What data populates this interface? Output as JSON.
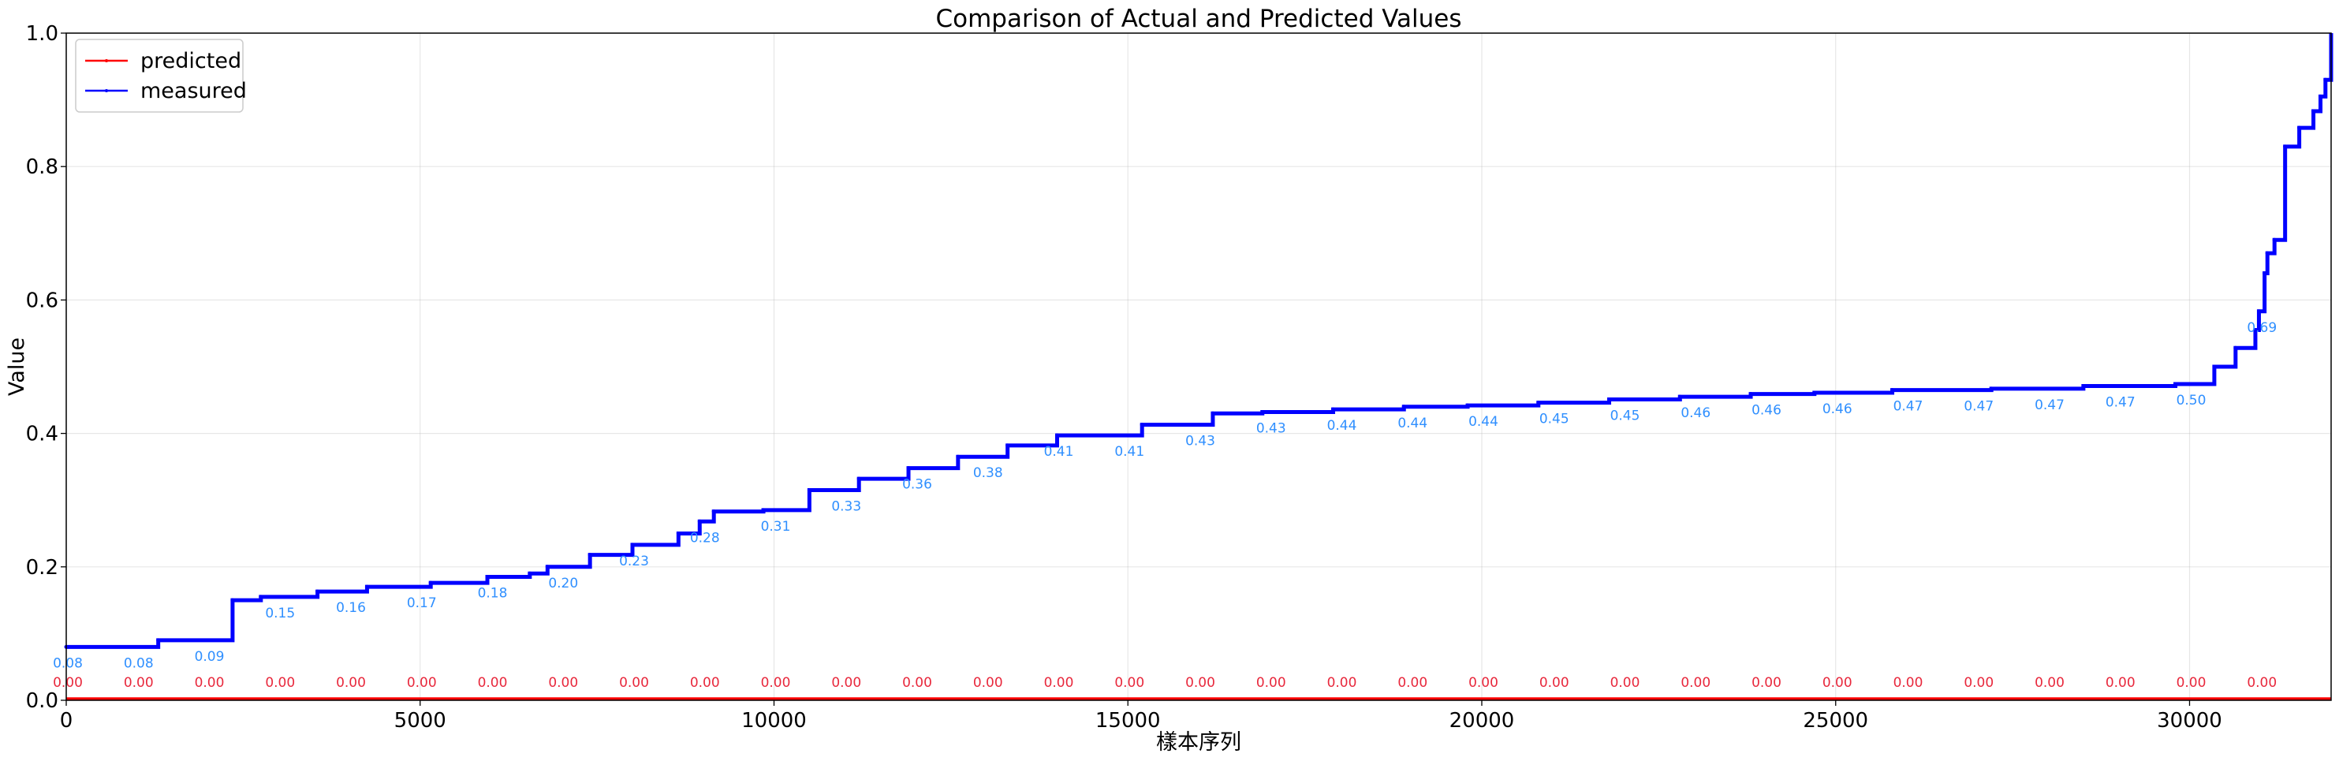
{
  "chart_data": {
    "type": "line",
    "title": "Comparison of Actual and Predicted Values",
    "xlabel": "樣本序列",
    "ylabel": "Value",
    "xlim": [
      0,
      32000
    ],
    "ylim": [
      0.0,
      1.0
    ],
    "grid": true,
    "legend_position": "top-left",
    "x_ticks": [
      0,
      5000,
      10000,
      15000,
      20000,
      25000,
      30000
    ],
    "x_tick_labels": [
      "0",
      "5000",
      "10000",
      "15000",
      "20000",
      "25000",
      "30000"
    ],
    "y_ticks": [
      0.0,
      0.2,
      0.4,
      0.6,
      0.8,
      1.0
    ],
    "y_tick_labels": [
      "0.0",
      "0.2",
      "0.4",
      "0.6",
      "0.8",
      "1.0"
    ],
    "series": [
      {
        "name": "predicted",
        "color": "#ff0000",
        "x": [
          0,
          32000
        ],
        "y": [
          0.0,
          0.0
        ]
      },
      {
        "name": "measured",
        "color": "#0000ff",
        "x": [
          0,
          1300,
          2350,
          2750,
          3550,
          4250,
          5150,
          5950,
          6550,
          6800,
          7400,
          8000,
          8650,
          8950,
          9150,
          9850,
          10500,
          11200,
          11900,
          12600,
          13300,
          14000,
          15200,
          16200,
          16900,
          17900,
          18900,
          19800,
          20800,
          21800,
          22800,
          23800,
          24700,
          25800,
          27200,
          28500,
          29800,
          30350,
          30650,
          30930,
          30980,
          31060,
          31100,
          31200,
          31350,
          31550,
          31750,
          31850,
          31920,
          32000
        ],
        "y": [
          0.08,
          0.09,
          0.15,
          0.155,
          0.163,
          0.17,
          0.176,
          0.185,
          0.19,
          0.2,
          0.218,
          0.233,
          0.25,
          0.268,
          0.283,
          0.285,
          0.315,
          0.332,
          0.348,
          0.365,
          0.382,
          0.397,
          0.413,
          0.43,
          0.432,
          0.436,
          0.44,
          0.442,
          0.446,
          0.451,
          0.455,
          0.459,
          0.461,
          0.465,
          0.467,
          0.471,
          0.474,
          0.5,
          0.528,
          0.555,
          0.583,
          0.64,
          0.67,
          0.69,
          0.83,
          0.858,
          0.883,
          0.905,
          0.93,
          0.955
        ]
      }
    ],
    "annotations_measured": {
      "x": [
        0,
        1000,
        2000,
        3000,
        4000,
        5000,
        6000,
        7000,
        8000,
        9000,
        10000,
        11000,
        12000,
        13000,
        14000,
        15000,
        16000,
        17000,
        18000,
        19000,
        20000,
        21000,
        22000,
        23000,
        24000,
        25000,
        26000,
        27000,
        28000,
        29000,
        30000,
        31000
      ],
      "labels": [
        "0.08",
        "0.08",
        "0.09",
        "0.15",
        "0.16",
        "0.17",
        "0.18",
        "0.20",
        "0.23",
        "0.28",
        "0.31",
        "0.33",
        "0.36",
        "0.38",
        "0.41",
        "0.41",
        "0.43",
        "0.43",
        "0.44",
        "0.44",
        "0.44",
        "0.45",
        "0.45",
        "0.46",
        "0.46",
        "0.46",
        "0.47",
        "0.47",
        "0.47",
        "0.47",
        "0.50",
        "0.69"
      ]
    },
    "annotations_predicted": {
      "x": [
        0,
        1000,
        2000,
        3000,
        4000,
        5000,
        6000,
        7000,
        8000,
        9000,
        10000,
        11000,
        12000,
        13000,
        14000,
        15000,
        16000,
        17000,
        18000,
        19000,
        20000,
        21000,
        22000,
        23000,
        24000,
        25000,
        26000,
        27000,
        28000,
        29000,
        30000,
        31000
      ],
      "labels": [
        "0.00",
        "0.00",
        "0.00",
        "0.00",
        "0.00",
        "0.00",
        "0.00",
        "0.00",
        "0.00",
        "0.00",
        "0.00",
        "0.00",
        "0.00",
        "0.00",
        "0.00",
        "0.00",
        "0.00",
        "0.00",
        "0.00",
        "0.00",
        "0.00",
        "0.00",
        "0.00",
        "0.00",
        "0.00",
        "0.00",
        "0.00",
        "0.00",
        "0.00",
        "0.00",
        "0.00",
        "0.00"
      ]
    }
  }
}
